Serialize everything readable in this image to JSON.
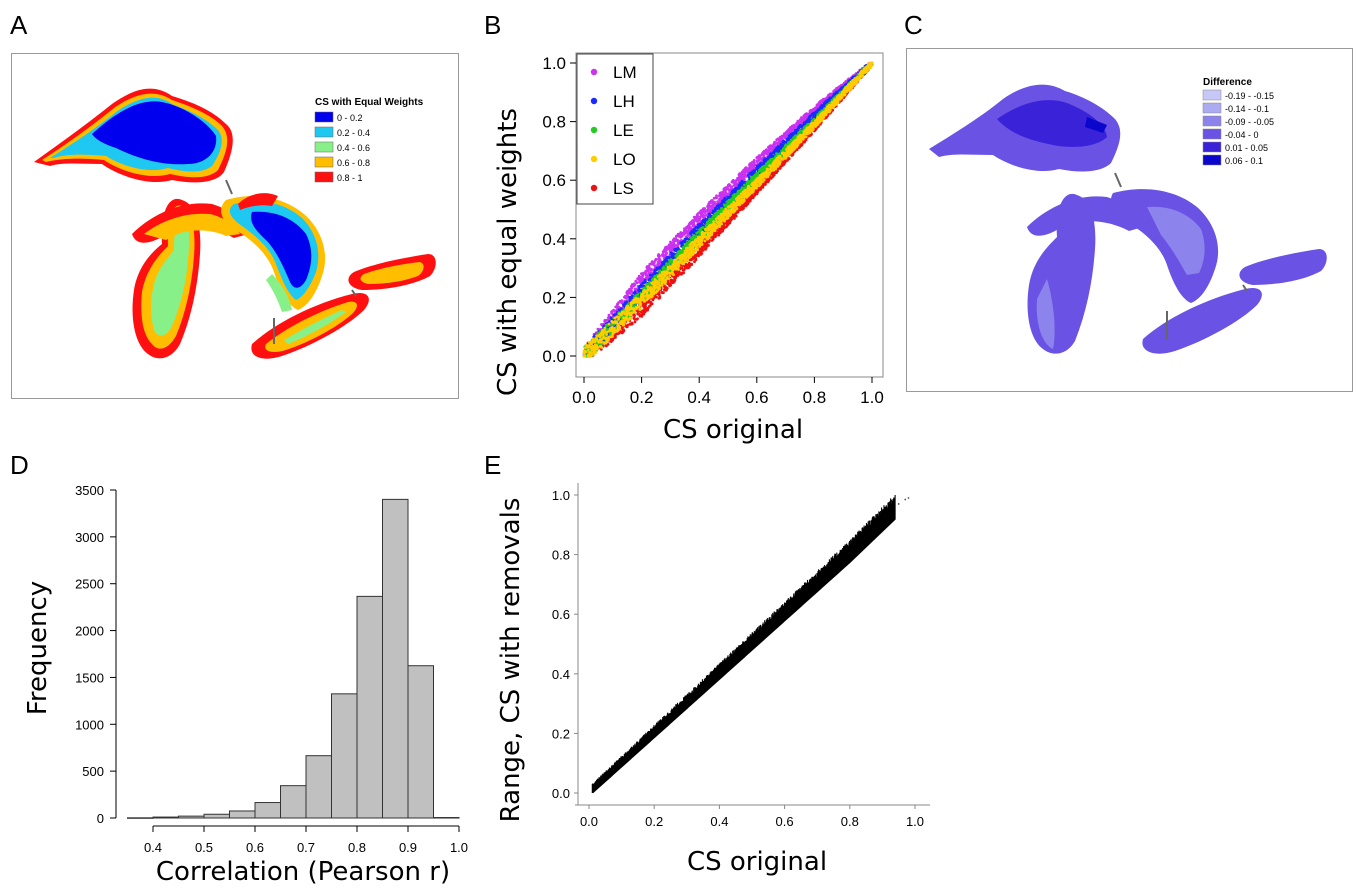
{
  "panels": {
    "A": {
      "letter": "A",
      "legend": {
        "title": "CS with Equal Weights",
        "entries": [
          {
            "label": "0 - 0.2",
            "color": "#0000ee"
          },
          {
            "label": "0.2 - 0.4",
            "color": "#1ec8f0"
          },
          {
            "label": "0.4 - 0.6",
            "color": "#88f088"
          },
          {
            "label": "0.6 - 0.8",
            "color": "#ffbf00"
          },
          {
            "label": "0.8 - 1",
            "color": "#ff1010"
          }
        ]
      }
    },
    "B": {
      "letter": "B",
      "xlabel": "CS original",
      "ylabel": "CS with equal weights"
    },
    "C": {
      "letter": "C",
      "legend": {
        "title": "Difference",
        "entries": [
          {
            "label": "-0.19 - -0.15",
            "color": "#c8c8f8"
          },
          {
            "label": "-0.14 - -0.1",
            "color": "#ababf2"
          },
          {
            "label": "-0.09 - -0.05",
            "color": "#8c84ec"
          },
          {
            "label": "-0.04 - 0",
            "color": "#6a52e4"
          },
          {
            "label": "0.01 - 0.05",
            "color": "#3a22d8"
          },
          {
            "label": "0.06 - 0.1",
            "color": "#0a06cc"
          }
        ]
      }
    },
    "D": {
      "letter": "D",
      "xlabel": "Correlation (Pearson r)",
      "ylabel": "Frequency"
    },
    "E": {
      "letter": "E",
      "xlabel": "CS original",
      "ylabel": "Range, CS with removals"
    }
  },
  "chart_data": [
    {
      "panel": "B",
      "type": "scatter",
      "xlabel": "CS original",
      "ylabel": "CS with equal weights",
      "xlim": [
        0,
        1.0
      ],
      "ylim": [
        0,
        1.0
      ],
      "xticks": [
        "0.0",
        "0.2",
        "0.4",
        "0.6",
        "0.8",
        "1.0"
      ],
      "yticks": [
        "0.0",
        "0.2",
        "0.4",
        "0.6",
        "0.8",
        "1.0"
      ],
      "legend_position": "top-left",
      "series": [
        {
          "name": "LM",
          "color": "#cc33ee",
          "band": [
            [
              0.0,
              0.0
            ],
            [
              0.2,
              0.26
            ],
            [
              0.4,
              0.47
            ],
            [
              0.6,
              0.66
            ],
            [
              0.8,
              0.84
            ],
            [
              1.0,
              1.0
            ]
          ]
        },
        {
          "name": "LH",
          "color": "#1a2bff",
          "band": [
            [
              0.0,
              0.0
            ],
            [
              0.2,
              0.22
            ],
            [
              0.4,
              0.43
            ],
            [
              0.6,
              0.63
            ],
            [
              0.8,
              0.82
            ],
            [
              1.0,
              1.0
            ]
          ]
        },
        {
          "name": "LE",
          "color": "#22cc22",
          "band": [
            [
              0.0,
              0.0
            ],
            [
              0.2,
              0.2
            ],
            [
              0.4,
              0.41
            ],
            [
              0.6,
              0.61
            ],
            [
              0.8,
              0.8
            ],
            [
              1.0,
              1.0
            ]
          ]
        },
        {
          "name": "LO",
          "color": "#ffcc00",
          "band": [
            [
              0.0,
              0.0
            ],
            [
              0.2,
              0.19
            ],
            [
              0.4,
              0.39
            ],
            [
              0.6,
              0.59
            ],
            [
              0.8,
              0.79
            ],
            [
              1.0,
              1.0
            ]
          ]
        },
        {
          "name": "LS",
          "color": "#ee1111",
          "band": [
            [
              0.0,
              0.0
            ],
            [
              0.2,
              0.16
            ],
            [
              0.4,
              0.36
            ],
            [
              0.6,
              0.57
            ],
            [
              0.8,
              0.78
            ],
            [
              1.0,
              1.0
            ]
          ]
        }
      ]
    },
    {
      "panel": "D",
      "type": "bar",
      "xlabel": "Correlation (Pearson r)",
      "ylabel": "Frequency",
      "xlim": [
        0.35,
        1.0
      ],
      "ylim": [
        0,
        3500
      ],
      "xticks": [
        "0.4",
        "0.5",
        "0.6",
        "0.7",
        "0.8",
        "0.9",
        "1.0"
      ],
      "yticks": [
        "0",
        "500",
        "1000",
        "1500",
        "2000",
        "2500",
        "3000",
        "3500"
      ],
      "bins": [
        {
          "start": 0.35,
          "end": 0.4,
          "value": 2
        },
        {
          "start": 0.4,
          "end": 0.45,
          "value": 10
        },
        {
          "start": 0.45,
          "end": 0.5,
          "value": 20
        },
        {
          "start": 0.5,
          "end": 0.55,
          "value": 40
        },
        {
          "start": 0.55,
          "end": 0.6,
          "value": 75
        },
        {
          "start": 0.6,
          "end": 0.65,
          "value": 165
        },
        {
          "start": 0.65,
          "end": 0.7,
          "value": 345
        },
        {
          "start": 0.7,
          "end": 0.75,
          "value": 665
        },
        {
          "start": 0.75,
          "end": 0.8,
          "value": 1325
        },
        {
          "start": 0.8,
          "end": 0.85,
          "value": 2365
        },
        {
          "start": 0.85,
          "end": 0.9,
          "value": 3400
        },
        {
          "start": 0.9,
          "end": 0.95,
          "value": 1625
        },
        {
          "start": 0.95,
          "end": 1.0,
          "value": 5
        }
      ],
      "bar_color": "#c0c0c0"
    },
    {
      "panel": "E",
      "type": "scatter",
      "xlabel": "CS original",
      "ylabel": "Range, CS with removals",
      "xlim": [
        0,
        1.0
      ],
      "ylim": [
        0,
        1.0
      ],
      "xticks": [
        "0.0",
        "0.2",
        "0.4",
        "0.6",
        "0.8",
        "1.0"
      ],
      "yticks": [
        "0.0",
        "0.2",
        "0.4",
        "0.6",
        "0.8",
        "1.0"
      ],
      "series": [
        {
          "color": "#000000",
          "band": [
            [
              0.0,
              0.0
            ],
            [
              0.2,
              0.2
            ],
            [
              0.4,
              0.4
            ],
            [
              0.6,
              0.6
            ],
            [
              0.8,
              0.8
            ],
            [
              0.95,
              0.96
            ]
          ]
        }
      ]
    }
  ]
}
